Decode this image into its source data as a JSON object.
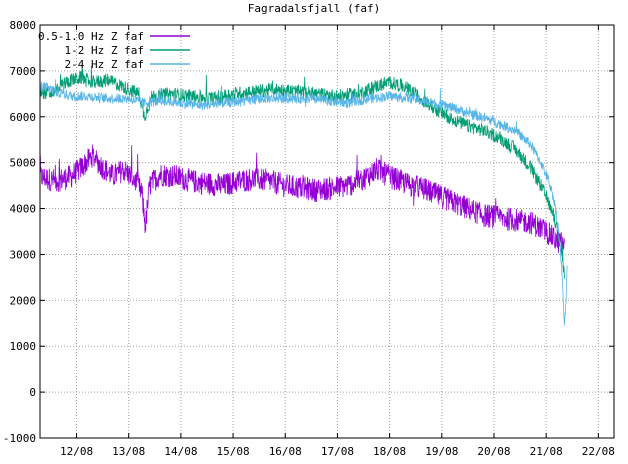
{
  "chart_data": {
    "type": "line",
    "title": "Fagradalsfjall (faf)",
    "xlabel": "",
    "ylabel": "",
    "x_ticks": [
      "12/08",
      "13/08",
      "14/08",
      "15/08",
      "16/08",
      "17/08",
      "18/08",
      "19/08",
      "20/08",
      "21/08",
      "22/08"
    ],
    "xlim_days": [
      11.3,
      22.3
    ],
    "ylim": [
      -1000,
      8000
    ],
    "y_ticks": [
      -1000,
      0,
      1000,
      2000,
      3000,
      4000,
      5000,
      6000,
      7000,
      8000
    ],
    "grid": true,
    "legend_position": "top-left",
    "series": [
      {
        "name": "0.5-1.0 Hz Z faf",
        "color": "#9400d3",
        "noise": 260,
        "points": [
          [
            11.3,
            4700
          ],
          [
            11.6,
            4600
          ],
          [
            11.9,
            4700
          ],
          [
            12.1,
            4900
          ],
          [
            12.3,
            5150
          ],
          [
            12.5,
            4900
          ],
          [
            12.7,
            4700
          ],
          [
            12.9,
            4850
          ],
          [
            13.1,
            4650
          ],
          [
            13.25,
            4350
          ],
          [
            13.32,
            3600
          ],
          [
            13.4,
            4500
          ],
          [
            13.6,
            4750
          ],
          [
            13.9,
            4700
          ],
          [
            14.2,
            4600
          ],
          [
            14.5,
            4550
          ],
          [
            14.8,
            4500
          ],
          [
            15.1,
            4600
          ],
          [
            15.4,
            4650
          ],
          [
            15.7,
            4600
          ],
          [
            16.0,
            4500
          ],
          [
            16.3,
            4450
          ],
          [
            16.6,
            4400
          ],
          [
            16.9,
            4450
          ],
          [
            17.2,
            4500
          ],
          [
            17.5,
            4650
          ],
          [
            17.75,
            4850
          ],
          [
            18.0,
            4700
          ],
          [
            18.3,
            4550
          ],
          [
            18.6,
            4450
          ],
          [
            18.9,
            4300
          ],
          [
            19.2,
            4150
          ],
          [
            19.5,
            4000
          ],
          [
            19.8,
            3850
          ],
          [
            20.1,
            3800
          ],
          [
            20.4,
            3750
          ],
          [
            20.7,
            3700
          ],
          [
            21.0,
            3500
          ],
          [
            21.2,
            3300
          ],
          [
            21.35,
            3200
          ]
        ]
      },
      {
        "name": "1-2 Hz Z faf",
        "color": "#009e73",
        "noise": 150,
        "points": [
          [
            11.3,
            6550
          ],
          [
            11.5,
            6500
          ],
          [
            11.7,
            6700
          ],
          [
            11.9,
            6800
          ],
          [
            12.1,
            6850
          ],
          [
            12.3,
            6750
          ],
          [
            12.6,
            6800
          ],
          [
            12.9,
            6650
          ],
          [
            13.2,
            6500
          ],
          [
            13.3,
            6000
          ],
          [
            13.45,
            6450
          ],
          [
            13.8,
            6500
          ],
          [
            14.2,
            6450
          ],
          [
            14.6,
            6400
          ],
          [
            15.0,
            6500
          ],
          [
            15.4,
            6550
          ],
          [
            15.8,
            6600
          ],
          [
            16.2,
            6550
          ],
          [
            16.6,
            6500
          ],
          [
            17.0,
            6450
          ],
          [
            17.4,
            6500
          ],
          [
            17.7,
            6650
          ],
          [
            18.0,
            6750
          ],
          [
            18.3,
            6650
          ],
          [
            18.6,
            6400
          ],
          [
            18.9,
            6150
          ],
          [
            19.2,
            5950
          ],
          [
            19.5,
            5800
          ],
          [
            19.8,
            5700
          ],
          [
            20.1,
            5550
          ],
          [
            20.4,
            5300
          ],
          [
            20.7,
            4900
          ],
          [
            20.9,
            4500
          ],
          [
            21.1,
            4000
          ],
          [
            21.2,
            3600
          ],
          [
            21.3,
            3000
          ],
          [
            21.35,
            2500
          ]
        ]
      },
      {
        "name": "2-4 Hz Z faf",
        "color": "#56b4e9",
        "noise": 110,
        "points": [
          [
            11.3,
            6700
          ],
          [
            11.6,
            6550
          ],
          [
            11.9,
            6450
          ],
          [
            12.2,
            6450
          ],
          [
            12.6,
            6400
          ],
          [
            13.0,
            6400
          ],
          [
            13.3,
            6300
          ],
          [
            13.6,
            6350
          ],
          [
            14.0,
            6300
          ],
          [
            14.4,
            6250
          ],
          [
            14.8,
            6300
          ],
          [
            15.2,
            6350
          ],
          [
            15.6,
            6400
          ],
          [
            16.0,
            6400
          ],
          [
            16.4,
            6400
          ],
          [
            16.8,
            6350
          ],
          [
            17.2,
            6300
          ],
          [
            17.6,
            6400
          ],
          [
            18.0,
            6450
          ],
          [
            18.4,
            6400
          ],
          [
            18.8,
            6300
          ],
          [
            19.2,
            6200
          ],
          [
            19.6,
            6050
          ],
          [
            20.0,
            5900
          ],
          [
            20.4,
            5700
          ],
          [
            20.7,
            5400
          ],
          [
            20.9,
            5000
          ],
          [
            21.05,
            4600
          ],
          [
            21.15,
            4200
          ],
          [
            21.22,
            3700
          ],
          [
            21.28,
            3000
          ],
          [
            21.32,
            2200
          ],
          [
            21.35,
            1400
          ],
          [
            21.38,
            2000
          ],
          [
            21.4,
            2700
          ]
        ]
      }
    ]
  }
}
